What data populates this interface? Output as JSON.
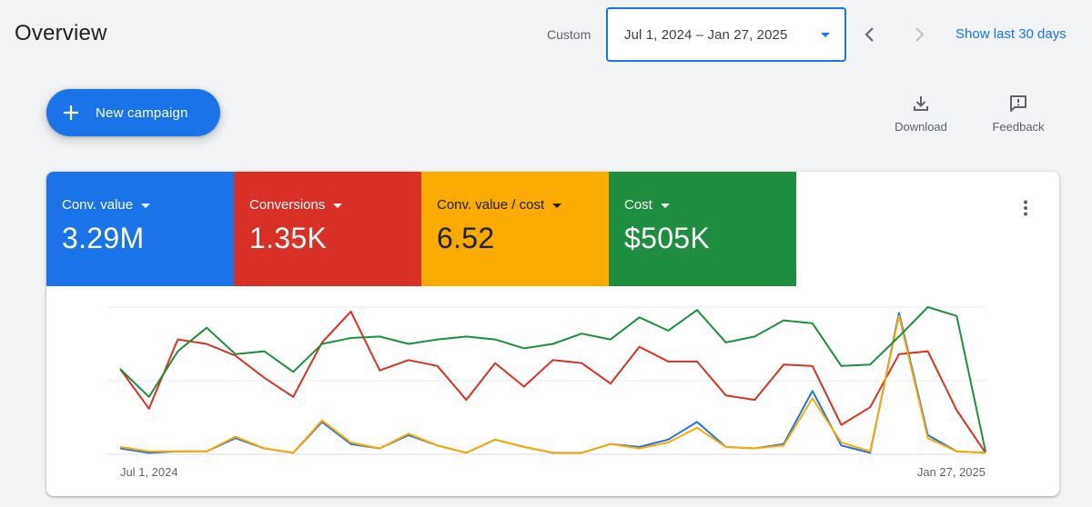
{
  "header": {
    "title": "Overview",
    "range_label": "Custom",
    "date_range": "Jul 1, 2024 – Jan 27, 2025",
    "show_last": "Show last 30 days"
  },
  "actions": {
    "new_campaign": "New campaign",
    "download": "Download",
    "feedback": "Feedback"
  },
  "icons": {
    "plus": "plus-icon",
    "download": "download-icon",
    "feedback": "feedback-icon",
    "more": "more-vert-icon",
    "prev": "chevron-left-icon",
    "next": "chevron-right-icon",
    "dropdown": "caret-down-icon"
  },
  "metrics": [
    {
      "label": "Conv. value",
      "value": "3.29M",
      "color": "#1a73e8"
    },
    {
      "label": "Conversions",
      "value": "1.35K",
      "color": "#d93025"
    },
    {
      "label": "Conv. value / cost",
      "value": "6.52",
      "color": "#f9ab00"
    },
    {
      "label": "Cost",
      "value": "$505K",
      "color": "#1e8e3e"
    }
  ],
  "chart_data": {
    "type": "line",
    "x_start_label": "Jul 1, 2024",
    "x_end_label": "Jan 27, 2025",
    "grid": true,
    "y_axis_labels": false,
    "y_scale": "normalized 0-1 per series",
    "series": [
      {
        "name": "Conv. value",
        "color": "#1a73e8",
        "values": [
          0.04,
          0.01,
          0.02,
          0.02,
          0.11,
          0.04,
          0.01,
          0.22,
          0.07,
          0.04,
          0.13,
          0.06,
          0.01,
          0.1,
          0.05,
          0.01,
          0.01,
          0.07,
          0.05,
          0.1,
          0.22,
          0.05,
          0.04,
          0.07,
          0.43,
          0.06,
          0.01,
          0.96,
          0.13,
          0.02,
          0.01
        ]
      },
      {
        "name": "Conversions",
        "color": "#d93025",
        "values": [
          0.58,
          0.31,
          0.78,
          0.75,
          0.67,
          0.52,
          0.39,
          0.76,
          0.97,
          0.57,
          0.64,
          0.6,
          0.37,
          0.62,
          0.46,
          0.64,
          0.62,
          0.48,
          0.73,
          0.63,
          0.63,
          0.4,
          0.37,
          0.61,
          0.6,
          0.2,
          0.32,
          0.68,
          0.7,
          0.3,
          0.01
        ]
      },
      {
        "name": "Conv. value / cost",
        "color": "#f9ab00",
        "values": [
          0.05,
          0.02,
          0.02,
          0.02,
          0.12,
          0.04,
          0.01,
          0.23,
          0.08,
          0.04,
          0.14,
          0.06,
          0.01,
          0.1,
          0.05,
          0.01,
          0.01,
          0.07,
          0.04,
          0.08,
          0.18,
          0.05,
          0.04,
          0.06,
          0.38,
          0.08,
          0.02,
          0.94,
          0.11,
          0.02,
          0.01
        ]
      },
      {
        "name": "Cost",
        "color": "#1e8e3e",
        "values": [
          0.58,
          0.39,
          0.7,
          0.86,
          0.68,
          0.7,
          0.56,
          0.75,
          0.79,
          0.8,
          0.75,
          0.78,
          0.8,
          0.78,
          0.72,
          0.75,
          0.82,
          0.78,
          0.93,
          0.84,
          0.98,
          0.76,
          0.8,
          0.91,
          0.89,
          0.6,
          0.61,
          0.8,
          1.0,
          0.94,
          0.02
        ]
      }
    ]
  }
}
